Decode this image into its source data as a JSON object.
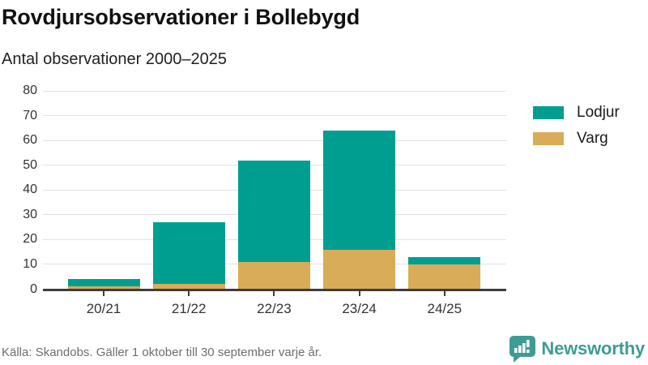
{
  "header": {
    "title": "Rovdjursobservationer i Bollebygd",
    "subtitle": "Antal observationer 2000–2025"
  },
  "chart_data": {
    "type": "bar",
    "stacked": true,
    "title": "Rovdjursobservationer i Bollebygd",
    "subtitle": "Antal observationer 2000–2025",
    "categories": [
      "20/21",
      "21/22",
      "22/23",
      "23/24",
      "24/25"
    ],
    "series": [
      {
        "name": "Lodjur",
        "color": "#009e91",
        "values": [
          3,
          25,
          41,
          48,
          3
        ]
      },
      {
        "name": "Varg",
        "color": "#d9ac57",
        "values": [
          1,
          2,
          11,
          16,
          10
        ]
      }
    ],
    "totals": [
      4,
      27,
      52,
      64,
      13
    ],
    "xlabel": "",
    "ylabel": "",
    "ylim": [
      0,
      80
    ],
    "ytick_step": 10,
    "grid": "horizontal",
    "legend_position": "right"
  },
  "footer": {
    "source": "Källa: Skandobs. Gäller 1 oktober till 30 september varje år.",
    "brand": "Newsworthy"
  },
  "colors": {
    "lodjur": "#009e91",
    "varg": "#d9ac57",
    "gridline": "#e2e2e2",
    "axis": "#3d3d3d",
    "tick_text": "#333333",
    "source_text": "#6e6e6e",
    "brand_teal": "#3e9c94"
  }
}
